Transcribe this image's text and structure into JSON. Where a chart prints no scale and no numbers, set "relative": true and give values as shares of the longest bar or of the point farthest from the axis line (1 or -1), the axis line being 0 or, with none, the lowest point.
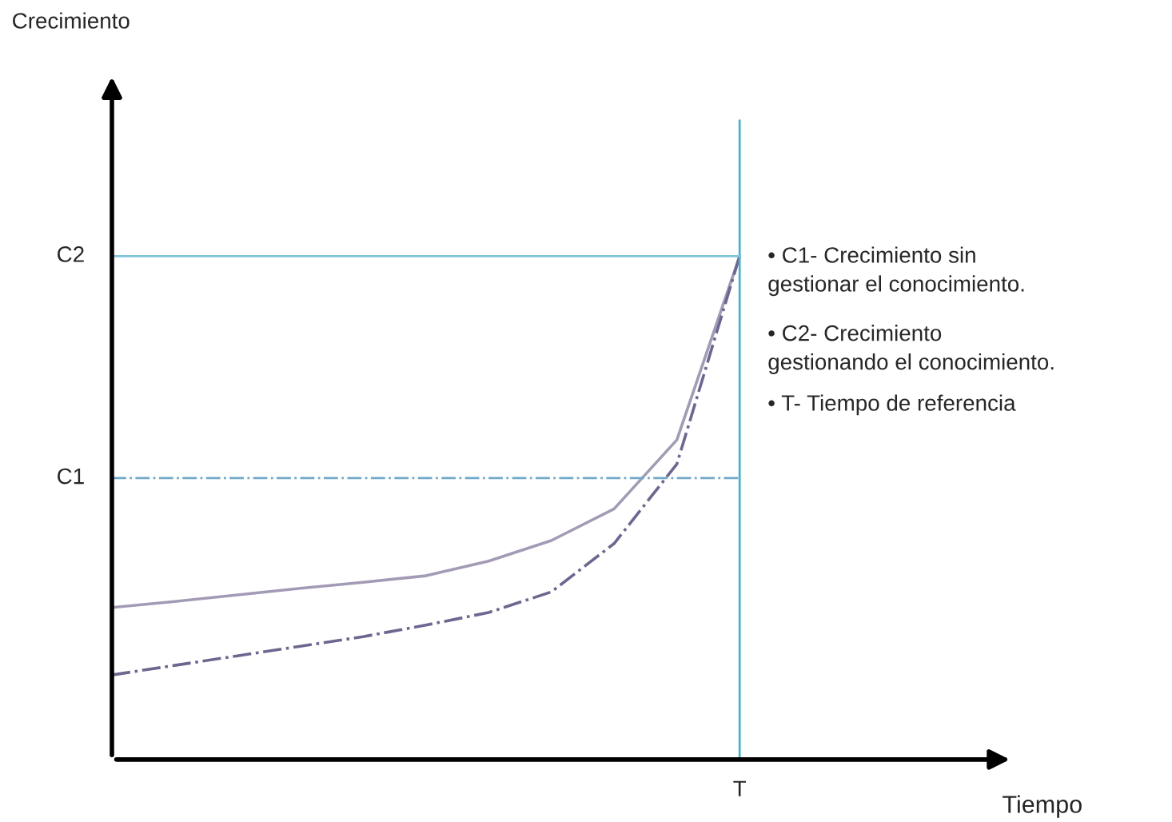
{
  "chart_data": {
    "type": "line",
    "categories": [
      null,
      null,
      null,
      null,
      null,
      null,
      null,
      null,
      null,
      null,
      null
    ],
    "relative": true,
    "series": [
      {
        "color": "#a39bb5",
        "line_style": "solid",
        "values": [
          0.302,
          0.314,
          0.327,
          0.34,
          0.352,
          0.365,
          0.394,
          0.435,
          0.498,
          0.635,
          1
        ]
      },
      {
        "color": "#6e6690",
        "line_style": "dashdot",
        "values": [
          0.168,
          0.187,
          0.206,
          0.225,
          0.244,
          0.267,
          0.292,
          0.333,
          0.429,
          0.587,
          1
        ]
      }
    ],
    "ref_lines": [
      {
        "axis": "y",
        "value": 1,
        "label": "C2",
        "color": "#7fc4d8",
        "line_style": "solid"
      },
      {
        "axis": "y",
        "value": 0.559,
        "label": "C1",
        "color": "#6fa8c8",
        "line_style": "dashdot"
      }
    ],
    "annotations": [
      "Crecimiento",
      "Tiempo",
      "T",
      "• C1- Crecimiento sin\ngestionar el conocimiento.",
      "• C2- Crecimiento\ngestionando el conocimiento.",
      "• T- Tiempo de referencia"
    ],
    "legend": false
  }
}
